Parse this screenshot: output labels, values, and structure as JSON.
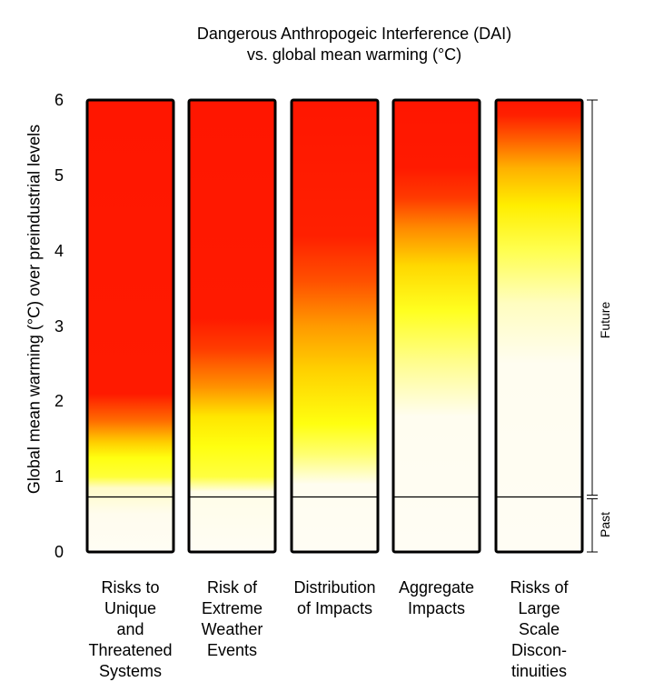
{
  "chart_data": {
    "type": "heatmap",
    "title": "Dangerous Anthropogeic Interference (DAI)",
    "subtitle": "vs. global mean warming (°C)",
    "ylabel": "Global mean warming (°C) over preindustrial levels",
    "ylim": [
      0,
      6
    ],
    "yticks": [
      "0",
      "1",
      "2",
      "3",
      "4",
      "5",
      "6"
    ],
    "past_future_boundary": 0.73,
    "bracket_labels": {
      "future": "Future",
      "past": "Past"
    },
    "categories": [
      {
        "label": "Risks to\nUnique\nand\nThreatened\nSystems",
        "stops": [
          [
            0,
            "#fffdf4"
          ],
          [
            0.5,
            "#fffcee"
          ],
          [
            0.85,
            "#fffbc8"
          ],
          [
            1.0,
            "#ffff38"
          ],
          [
            1.25,
            "#ffff10"
          ],
          [
            1.45,
            "#ffd000"
          ],
          [
            1.75,
            "#ff6a00"
          ],
          [
            2.1,
            "#ff1a00"
          ],
          [
            6,
            "#ff1600"
          ]
        ]
      },
      {
        "label": "Risk of\nExtreme\nWeather\nEvents",
        "stops": [
          [
            0,
            "#fffdf4"
          ],
          [
            0.8,
            "#fffde8"
          ],
          [
            1.0,
            "#ffff40"
          ],
          [
            1.4,
            "#ffff10"
          ],
          [
            1.8,
            "#ffe600"
          ],
          [
            2.2,
            "#ff9000"
          ],
          [
            2.7,
            "#ff3c00"
          ],
          [
            3.1,
            "#ff1a00"
          ],
          [
            6,
            "#ff1600"
          ]
        ]
      },
      {
        "label": "Distribution\nof Impacts",
        "stops": [
          [
            0,
            "#fffdf4"
          ],
          [
            0.9,
            "#fffdf0"
          ],
          [
            1.3,
            "#ffff70"
          ],
          [
            1.7,
            "#ffff10"
          ],
          [
            2.4,
            "#ffd200"
          ],
          [
            3.0,
            "#ff9a00"
          ],
          [
            3.6,
            "#ff5000"
          ],
          [
            4.2,
            "#ff2000"
          ],
          [
            6,
            "#ff1600"
          ]
        ]
      },
      {
        "label": "Aggregate\nImpacts",
        "stops": [
          [
            0,
            "#fffdf4"
          ],
          [
            1.8,
            "#fffdf0"
          ],
          [
            2.5,
            "#fffd90"
          ],
          [
            3.2,
            "#ffff20"
          ],
          [
            3.8,
            "#ffd800"
          ],
          [
            4.3,
            "#ff8a00"
          ],
          [
            4.7,
            "#ff3a00"
          ],
          [
            5.1,
            "#ff1a00"
          ],
          [
            6,
            "#ff1600"
          ]
        ]
      },
      {
        "label": "Risks of\nLarge\nScale\nDiscon-\ntinuities",
        "stops": [
          [
            0,
            "#fffdf4"
          ],
          [
            2.5,
            "#fffdf0"
          ],
          [
            3.3,
            "#fffdc0"
          ],
          [
            4.0,
            "#ffff50"
          ],
          [
            4.6,
            "#ffee00"
          ],
          [
            5.1,
            "#ffb000"
          ],
          [
            5.5,
            "#ff5a00"
          ],
          [
            5.8,
            "#ff2000"
          ],
          [
            6,
            "#ff1600"
          ]
        ]
      }
    ]
  }
}
